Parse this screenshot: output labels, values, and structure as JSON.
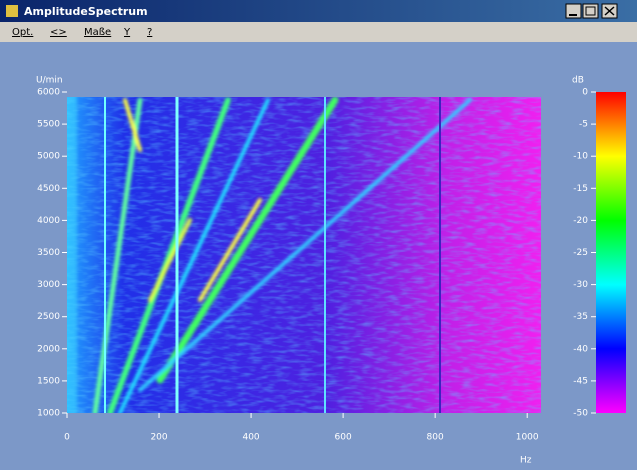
{
  "window": {
    "title": "AmplitudeSpectrum"
  },
  "menu": [
    "Opt.",
    "<>",
    "Maße",
    "Y",
    "?"
  ],
  "chart_data": {
    "type": "heatmap",
    "y_label": "U/min",
    "x_label": "Hz",
    "colorbar_label": "dB",
    "xlim": [
      0,
      1030
    ],
    "xticks": [
      0,
      200,
      400,
      600,
      800,
      1000
    ],
    "ylim": [
      1000,
      6000
    ],
    "yticks": [
      1000,
      1500,
      2000,
      2500,
      3000,
      3500,
      4000,
      4500,
      5000,
      5500,
      6000
    ],
    "colorbar_lim": [
      -50,
      0
    ],
    "colorbar_ticks": [
      0,
      -5,
      -10,
      -15,
      -20,
      -25,
      -30,
      -35,
      -40,
      -45,
      -50
    ]
  }
}
